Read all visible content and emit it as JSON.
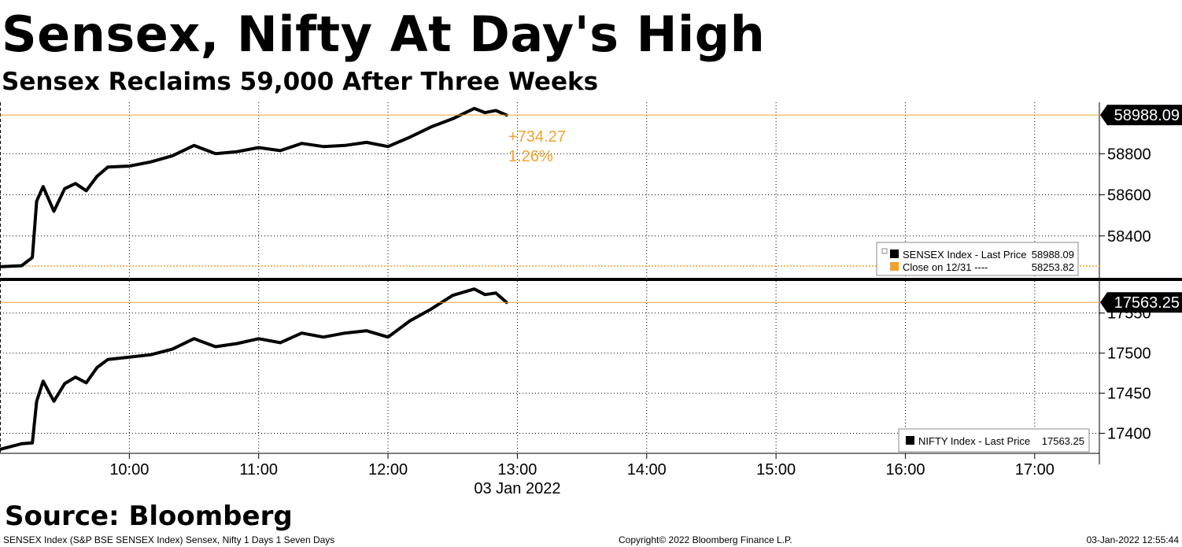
{
  "header": {
    "title": "Sensex, Nifty At Day's High",
    "subtitle": "Sensex Reclaims 59,000 After Three Weeks"
  },
  "source": "Source: Bloomberg",
  "footer": {
    "left": "SENSEX Index (S&P BSE SENSEX Index) Sensex, Nifty 1 Days 1 Seven Days",
    "center": "Copyright© 2022 Bloomberg Finance L.P.",
    "right": "03-Jan-2022 12:55:44"
  },
  "colors": {
    "line": "#000000",
    "close_line": "#f0a22e",
    "change_text": "#f0a22e",
    "grid": "#000000",
    "tag_bg": "#000000"
  },
  "chart_data": [
    {
      "type": "line",
      "panel": "top",
      "xlim": [
        "09:00",
        "17:30"
      ],
      "ylim": [
        58200,
        59050
      ],
      "yticks": [
        "58400",
        "58600",
        "58800"
      ],
      "last_value_label": "58988.09",
      "close_value": 58253.82,
      "change": {
        "abs": "+734.27",
        "pct": "1.26%"
      },
      "legend": [
        {
          "name": "SENSEX Index - Last Price",
          "value": "58988.09"
        },
        {
          "name": "Close on 12/31 ----",
          "value": "58253.82"
        }
      ],
      "series": [
        {
          "name": "SENSEX Index - Last Price",
          "x": [
            "09:00",
            "09:10",
            "09:15",
            "09:17",
            "09:20",
            "09:25",
            "09:30",
            "09:35",
            "09:40",
            "09:45",
            "09:50",
            "10:00",
            "10:10",
            "10:20",
            "10:30",
            "10:40",
            "10:50",
            "11:00",
            "11:10",
            "11:20",
            "11:30",
            "11:40",
            "11:50",
            "12:00",
            "12:10",
            "12:20",
            "12:30",
            "12:40",
            "12:45",
            "12:50",
            "12:55"
          ],
          "y": [
            58250,
            58255,
            58295,
            58570,
            58640,
            58520,
            58630,
            58655,
            58620,
            58690,
            58735,
            58740,
            58760,
            58790,
            58840,
            58800,
            58810,
            58830,
            58815,
            58850,
            58835,
            58840,
            58855,
            58835,
            58880,
            58930,
            58970,
            59020,
            59000,
            59010,
            58988.09
          ]
        }
      ]
    },
    {
      "type": "line",
      "panel": "bottom",
      "xlim": [
        "09:00",
        "17:30"
      ],
      "ylim": [
        17375,
        17590
      ],
      "yticks": [
        "17400",
        "17450",
        "17500",
        "17550"
      ],
      "last_value_label": "17563.25",
      "legend": [
        {
          "name": "NIFTY Index - Last Price",
          "value": "17563.25"
        }
      ],
      "series": [
        {
          "name": "NIFTY Index - Last Price",
          "x": [
            "09:00",
            "09:10",
            "09:15",
            "09:17",
            "09:20",
            "09:25",
            "09:30",
            "09:35",
            "09:40",
            "09:45",
            "09:50",
            "10:00",
            "10:10",
            "10:20",
            "10:30",
            "10:40",
            "10:50",
            "11:00",
            "11:10",
            "11:20",
            "11:30",
            "11:40",
            "11:50",
            "12:00",
            "12:10",
            "12:20",
            "12:30",
            "12:40",
            "12:45",
            "12:50",
            "12:55"
          ],
          "y": [
            17380,
            17387,
            17388,
            17440,
            17465,
            17440,
            17462,
            17470,
            17463,
            17482,
            17492,
            17495,
            17498,
            17505,
            17518,
            17508,
            17512,
            17518,
            17513,
            17525,
            17520,
            17525,
            17528,
            17520,
            17540,
            17555,
            17572,
            17580,
            17573,
            17575,
            17563.25
          ]
        }
      ]
    }
  ],
  "x_axis": {
    "ticks": [
      "10:00",
      "11:00",
      "12:00",
      "13:00",
      "14:00",
      "15:00",
      "16:00",
      "17:00"
    ],
    "date_label": "03 Jan 2022"
  }
}
